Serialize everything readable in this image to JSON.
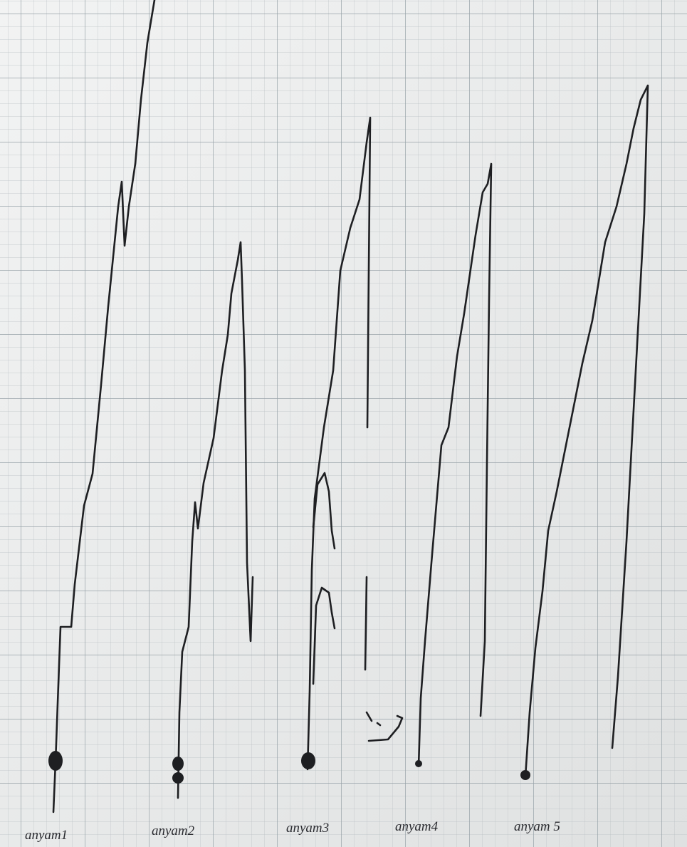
{
  "labels": [
    "anyam1",
    "anyam2",
    "anyam3",
    "anyam4",
    "anyam 5"
  ]
}
